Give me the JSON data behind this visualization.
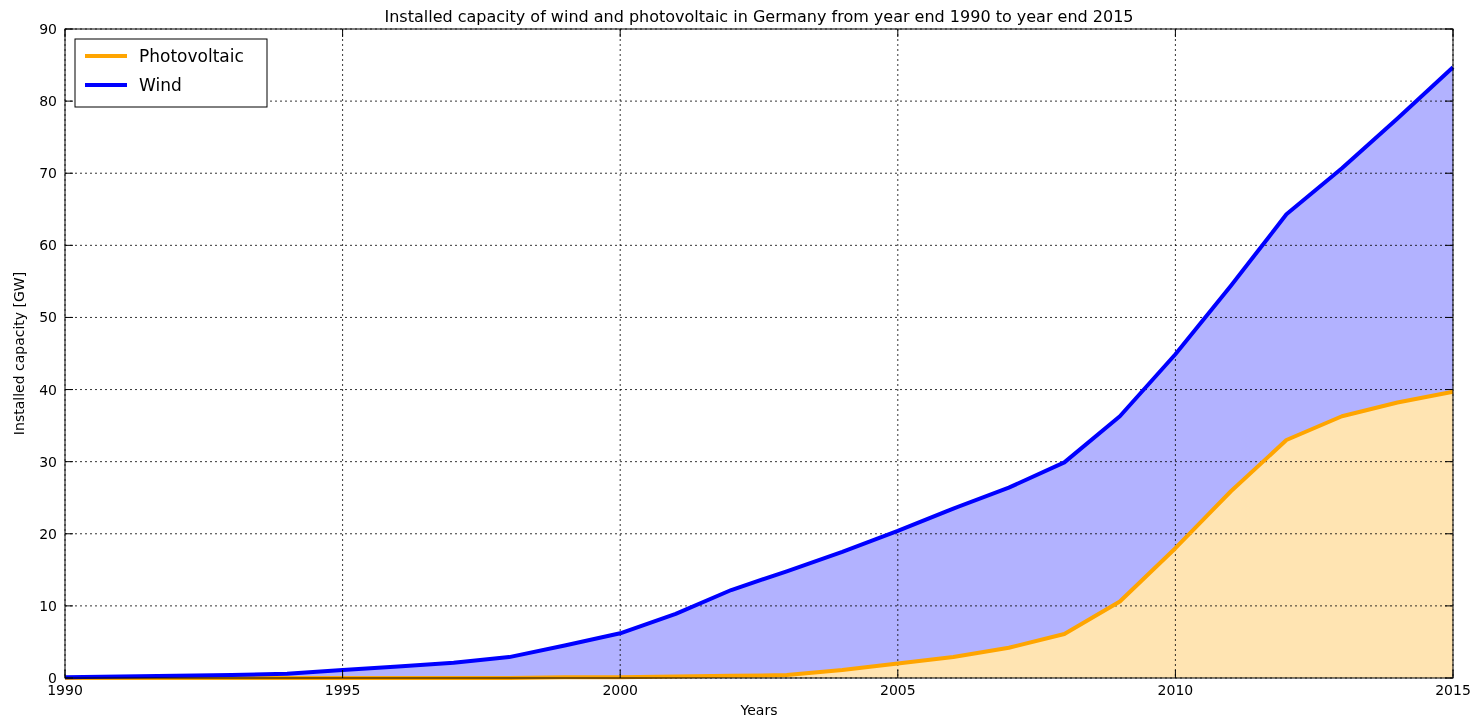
{
  "chart_data": {
    "type": "area",
    "title": "Installed capacity of wind and photovoltaic in Germany from year end 1990 to year end 2015",
    "xlabel": "Years",
    "ylabel": "Installed capacity [GW]",
    "x": [
      1990,
      1991,
      1992,
      1993,
      1994,
      1995,
      1996,
      1997,
      1998,
      1999,
      2000,
      2001,
      2002,
      2003,
      2004,
      2005,
      2006,
      2007,
      2008,
      2009,
      2010,
      2011,
      2012,
      2013,
      2014,
      2015
    ],
    "stacked": true,
    "series": [
      {
        "name": "Photovoltaic",
        "color": "#ffa500",
        "values": [
          0,
          0,
          0,
          0,
          0,
          0,
          0,
          0,
          0,
          0.1,
          0.1,
          0.2,
          0.3,
          0.4,
          1.1,
          2.0,
          2.9,
          4.2,
          6.1,
          10.6,
          18.0,
          25.9,
          33.0,
          36.3,
          38.2,
          39.7
        ]
      },
      {
        "name": "Wind",
        "color": "#0000ff",
        "values": [
          0.1,
          0.2,
          0.3,
          0.4,
          0.6,
          1.1,
          1.6,
          2.1,
          2.9,
          4.4,
          6.1,
          8.7,
          11.9,
          14.4,
          16.4,
          18.4,
          20.6,
          22.2,
          23.8,
          25.7,
          26.9,
          28.5,
          31.3,
          34.4,
          39.4,
          45.0
        ]
      }
    ],
    "xlim": [
      1990,
      2015
    ],
    "xticks": [
      1990,
      1995,
      2000,
      2005,
      2010,
      2015
    ],
    "ylim": [
      0,
      90
    ],
    "yticks": [
      0,
      10,
      20,
      30,
      40,
      50,
      60,
      70,
      80,
      90
    ],
    "grid": true,
    "legend": "top left",
    "line_style": "solid",
    "marker": "none"
  }
}
